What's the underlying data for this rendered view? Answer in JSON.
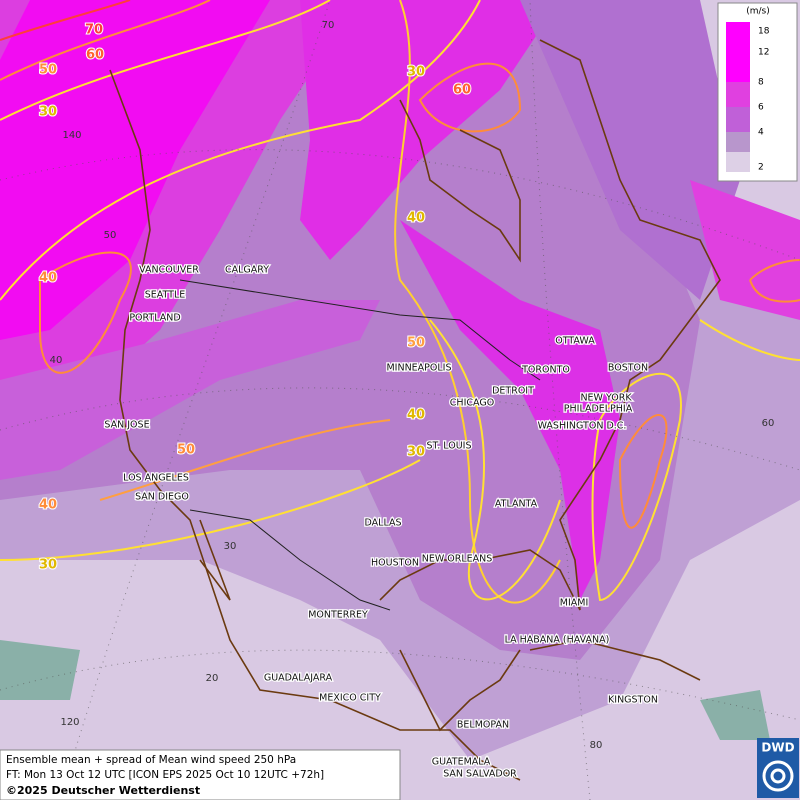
{
  "map": {
    "legend": {
      "unit": "(m/s)",
      "levels": [
        "18",
        "12",
        "8",
        "6",
        "4",
        "2"
      ]
    },
    "contour_labels": [
      "70",
      "60",
      "50",
      "30",
      "40",
      "40",
      "30",
      "30",
      "60",
      "40",
      "50",
      "40",
      "30",
      "50"
    ],
    "grid_labels": [
      "70",
      "140",
      "50",
      "40",
      "30",
      "20",
      "120",
      "60",
      "80"
    ],
    "cities": [
      "VANCOUVER",
      "CALGARY",
      "SEATTLE",
      "PORTLAND",
      "SAN JOSE",
      "LOS ANGELES",
      "SAN DIEGO",
      "DALLAS",
      "HOUSTON",
      "NEW ORLEANS",
      "MONTERREY",
      "GUADALAJARA",
      "MEXICO CITY",
      "MINNEAPOLIS",
      "CHICAGO",
      "DETROIT",
      "TORONTO",
      "OTTAWA",
      "BOSTON",
      "NEW YORK",
      "PHILADELPHIA",
      "WASHINGTON D.C.",
      "ST. LOUIS",
      "ATLANTA",
      "MIAMI",
      "LA HABANA (HAVANA)",
      "KINGSTON",
      "BELMOPAN",
      "GUATEMALA",
      "SAN SALVADOR"
    ],
    "footer": {
      "line1": "Ensemble mean + spread of Mean wind speed 250 hPa",
      "line2": "FT: Mon 13 Oct 12 UTC [ICON EPS 2025 Oct 10 12UTC +72h]",
      "copyright": "©2025 Deutscher Wetterdienst"
    },
    "logo": "DWD"
  }
}
